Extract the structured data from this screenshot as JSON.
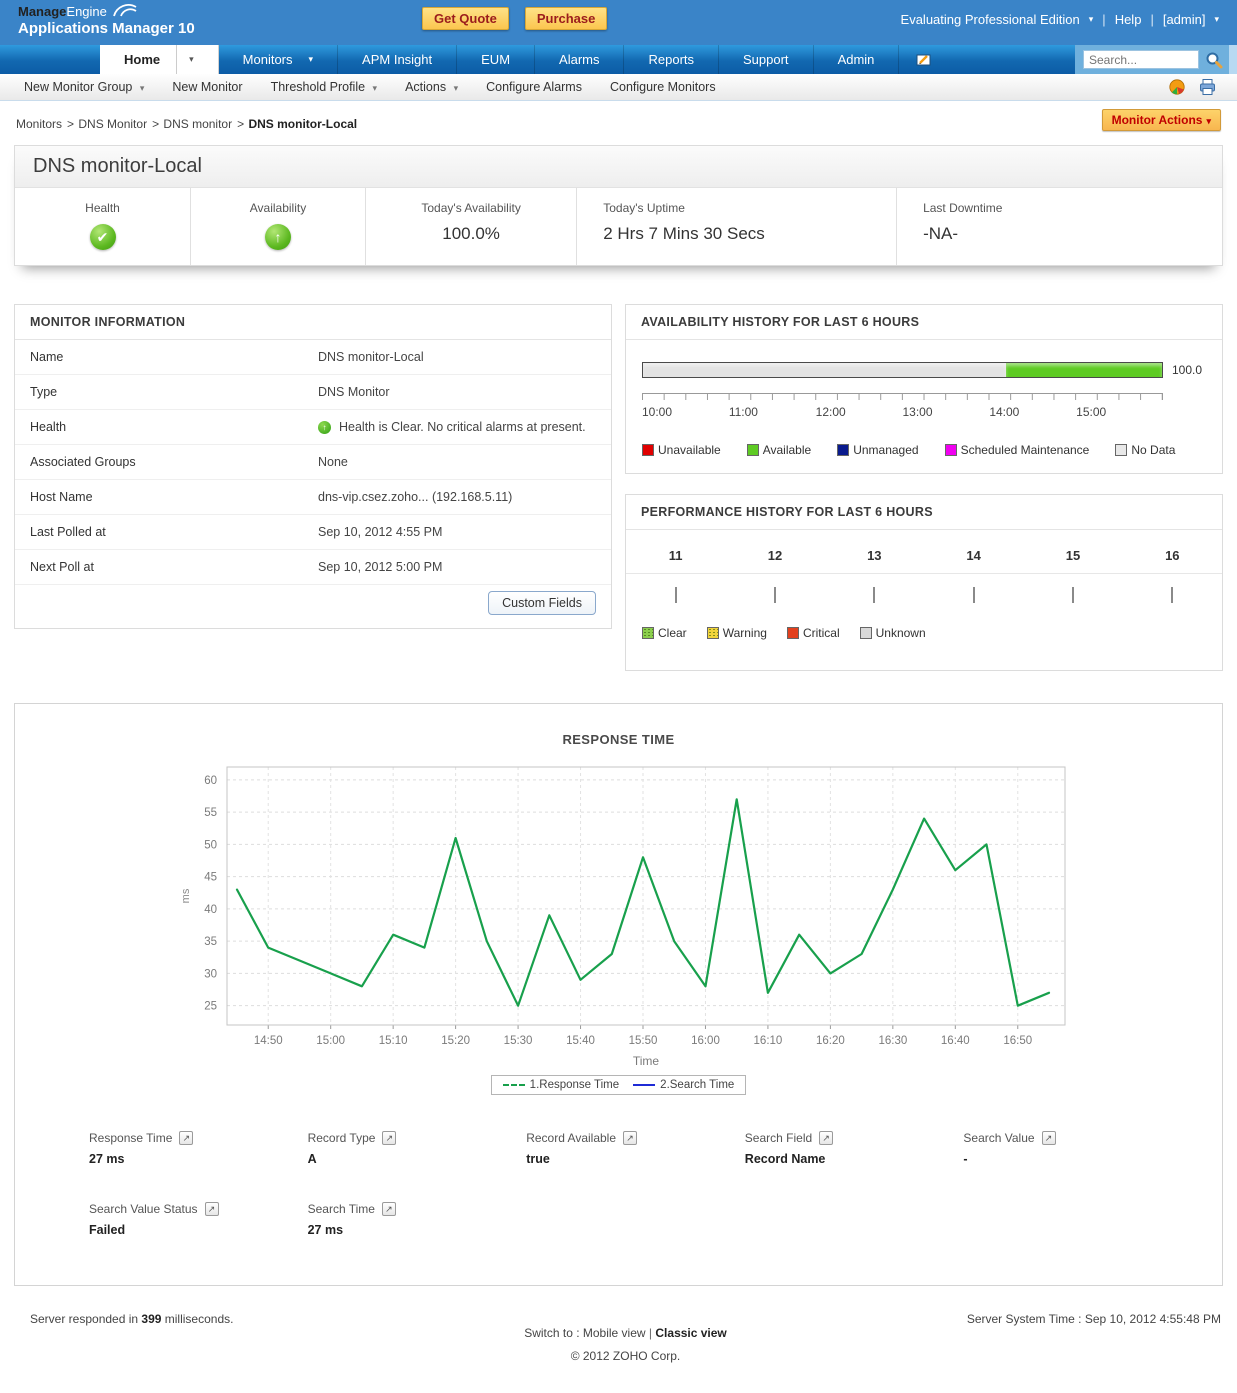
{
  "topbar": {
    "brand_bold": "Manage",
    "brand_light": "Engine",
    "brand_line2": "Applications Manager 10",
    "get_quote_label": "Get Quote",
    "purchase_label": "Purchase",
    "edition_label": "Evaluating Professional Edition",
    "help_label": "Help",
    "admin_label": "[admin]"
  },
  "nav": {
    "tabs": [
      {
        "label": "Home",
        "cls": "active",
        "caret": "has-caret"
      },
      {
        "label": "Monitors",
        "cls": "",
        "caret": "has-caret"
      },
      {
        "label": "APM Insight",
        "cls": "",
        "caret": ""
      },
      {
        "label": "EUM",
        "cls": "",
        "caret": ""
      },
      {
        "label": "Alarms",
        "cls": "",
        "caret": ""
      },
      {
        "label": "Reports",
        "cls": "",
        "caret": ""
      },
      {
        "label": "Support",
        "cls": "",
        "caret": ""
      },
      {
        "label": "Admin",
        "cls": "",
        "caret": ""
      }
    ],
    "search_placeholder": "Search..."
  },
  "subnav": {
    "items": [
      {
        "label": "New Monitor Group",
        "caret": "has-caret"
      },
      {
        "label": "New Monitor",
        "caret": ""
      },
      {
        "label": "Threshold Profile",
        "caret": "has-caret"
      },
      {
        "label": "Actions",
        "caret": "has-caret"
      },
      {
        "label": "Configure Alarms",
        "caret": ""
      },
      {
        "label": "Configure Monitors",
        "caret": ""
      }
    ]
  },
  "breadcrumb": {
    "links": [
      {
        "label": "Monitors"
      },
      {
        "label": "DNS Monitor"
      },
      {
        "label": "DNS monitor"
      }
    ],
    "current": "DNS monitor-Local"
  },
  "monitor_actions_label": "Monitor Actions",
  "summary": {
    "title": "DNS monitor-Local",
    "stats": [
      {
        "label": "Health"
      },
      {
        "label": "Availability"
      },
      {
        "label": "Today's Availability",
        "value": "100.0%"
      },
      {
        "label": "Today's Uptime",
        "value": "2 Hrs 7 Mins 30 Secs"
      },
      {
        "label": "Last Downtime",
        "value": "-NA-"
      }
    ]
  },
  "monitor_info": {
    "title": "MONITOR INFORMATION",
    "rows": [
      {
        "label": "Name",
        "value": "DNS monitor-Local",
        "icon": ""
      },
      {
        "label": "Type",
        "value": "DNS Monitor",
        "icon": ""
      },
      {
        "label": "Health",
        "value": "Health is Clear. No critical alarms at present.",
        "icon": "health-ok-icon"
      },
      {
        "label": "Associated Groups",
        "value": "None",
        "icon": ""
      },
      {
        "label": "Host Name",
        "value": "dns-vip.csez.zoho... (192.168.5.11)",
        "icon": ""
      },
      {
        "label": "Last Polled at",
        "value": "Sep 10, 2012 4:55 PM",
        "icon": ""
      },
      {
        "label": "Next Poll at",
        "value": "Sep 10, 2012 5:00 PM",
        "icon": ""
      }
    ],
    "custom_fields_label": "Custom Fields"
  },
  "availability_history": {
    "title": "AVAILABILITY HISTORY FOR LAST 6 HOURS",
    "bar_segments": [
      {
        "state": "no-data",
        "pct": 70,
        "color": "#e3e3e3"
      },
      {
        "state": "available",
        "pct": 30,
        "color": "#5ecb23"
      }
    ],
    "end_label": "100.0",
    "ticks": [
      "10:00",
      "11:00",
      "12:00",
      "13:00",
      "14:00",
      "15:00"
    ],
    "legend": [
      {
        "label": "Unavailable",
        "color": "#e00000",
        "cls": ""
      },
      {
        "label": "Available",
        "color": "#5ecb23",
        "cls": ""
      },
      {
        "label": "Unmanaged",
        "color": "#0a1b8e",
        "cls": ""
      },
      {
        "label": "Scheduled Maintenance",
        "color": "#f000f0",
        "cls": ""
      },
      {
        "label": "No Data",
        "color": "#e8e8e8",
        "cls": ""
      }
    ]
  },
  "performance_history": {
    "title": "PERFORMANCE HISTORY FOR LAST 6 HOURS",
    "hours": [
      {
        "hour": "11",
        "state": "unknown",
        "color": "#d8d8d8"
      },
      {
        "hour": "12",
        "state": "unknown",
        "color": "#d8d8d8"
      },
      {
        "hour": "13",
        "state": "unknown",
        "color": "#d8d8d8"
      },
      {
        "hour": "14",
        "state": "unknown",
        "color": "#d8d8d8"
      },
      {
        "hour": "15",
        "state": "clear",
        "color": "#8ccf4d"
      },
      {
        "hour": "16",
        "state": "clear",
        "color": "#8ccf4d"
      }
    ],
    "legend": [
      {
        "label": "Clear",
        "color": "#8ccf4d",
        "cls": "dotted"
      },
      {
        "label": "Warning",
        "color": "#f2d43c",
        "cls": "dotted"
      },
      {
        "label": "Critical",
        "color": "#e2401e",
        "cls": ""
      },
      {
        "label": "Unknown",
        "color": "#d8d8d8",
        "cls": ""
      }
    ]
  },
  "chart_data": {
    "type": "line",
    "title": "RESPONSE TIME",
    "xlabel": "Time",
    "ylabel": "ms",
    "ylim": [
      22,
      62
    ],
    "yticks": [
      25,
      30,
      35,
      40,
      45,
      50,
      55,
      60
    ],
    "grid": true,
    "legend_position": "bottom",
    "x": [
      "14:45",
      "14:50",
      "14:55",
      "15:00",
      "15:05",
      "15:10",
      "15:15",
      "15:20",
      "15:25",
      "15:30",
      "15:35",
      "15:40",
      "15:45",
      "15:50",
      "15:55",
      "16:00",
      "16:05",
      "16:10",
      "16:15",
      "16:20",
      "16:25",
      "16:30",
      "16:35",
      "16:40",
      "16:45",
      "16:50",
      "16:55"
    ],
    "x_tick_labels": [
      "14:50",
      "15:00",
      "15:10",
      "15:20",
      "15:30",
      "15:40",
      "15:50",
      "16:00",
      "16:10",
      "16:20",
      "16:30",
      "16:40",
      "16:50"
    ],
    "series": [
      {
        "name": "1.Response Time",
        "color": "#18a04c",
        "legend_cls": "dashed",
        "values": [
          43,
          34,
          32,
          30,
          28,
          36,
          34,
          51,
          35,
          25,
          39,
          29,
          33,
          48,
          35,
          28,
          57,
          27,
          36,
          30,
          33,
          43,
          54,
          46,
          50,
          25,
          27
        ]
      },
      {
        "name": "2.Search Time",
        "color": "#1f2bd6",
        "legend_cls": "solid",
        "values": []
      }
    ]
  },
  "attributes": [
    {
      "label": "Response Time",
      "value": "27 ms"
    },
    {
      "label": "Record Type",
      "value": "A"
    },
    {
      "label": "Record Available",
      "value": "true"
    },
    {
      "label": "Search Field",
      "value": "Record Name"
    },
    {
      "label": "Search Value",
      "value": "-"
    },
    {
      "label": "Search Value Status",
      "value": "Failed"
    },
    {
      "label": "Search Time",
      "value": "27 ms"
    }
  ],
  "footer": {
    "responded_prefix": "Server responded in ",
    "responded_ms": "399",
    "responded_suffix": " milliseconds.",
    "switch_label": "Switch to : Mobile view",
    "classic_label": "Classic view",
    "copyright": "© 2012 ZOHO Corp.",
    "server_time": "Server System Time : Sep 10, 2012 4:55:48 PM"
  }
}
